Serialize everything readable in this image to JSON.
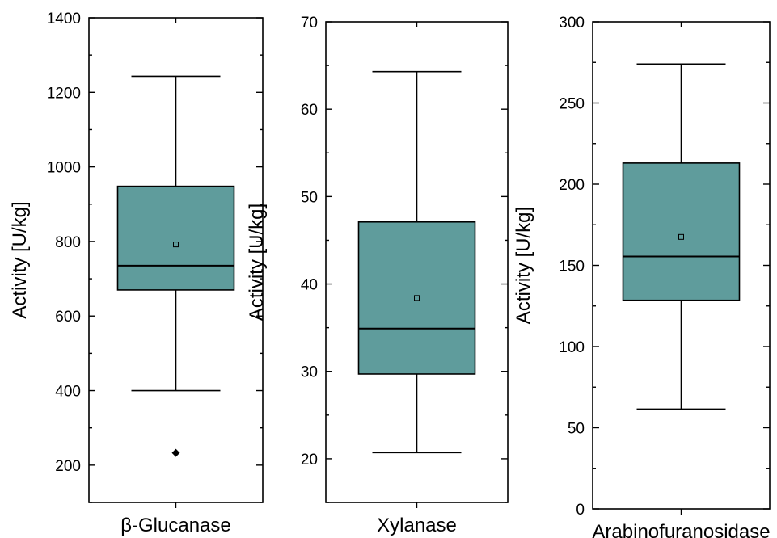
{
  "chart_data": [
    {
      "type": "box",
      "category": "β-Glucanase",
      "ylabel": "Activity [U/kg]",
      "ylim": [
        100,
        1400
      ],
      "yticks": [
        200,
        400,
        600,
        800,
        1000,
        1200,
        1400
      ],
      "box": {
        "whisker_low": 400,
        "q1": 670,
        "median": 735,
        "q3": 948,
        "whisker_high": 1243,
        "mean": 792,
        "outliers": [
          233
        ]
      }
    },
    {
      "type": "box",
      "category": "Xylanase",
      "ylabel": "Activity [U/kg]",
      "ylim": [
        15,
        70
      ],
      "yticks": [
        20,
        30,
        40,
        50,
        60,
        70
      ],
      "box": {
        "whisker_low": 20.7,
        "q1": 29.7,
        "median": 34.9,
        "q3": 47.1,
        "whisker_high": 64.3,
        "mean": 38.4,
        "outliers": []
      }
    },
    {
      "type": "box",
      "category": "Arabinofuranosidase",
      "ylabel": "Activity [U/kg]",
      "ylim": [
        0,
        300
      ],
      "yticks": [
        0,
        50,
        100,
        150,
        200,
        250,
        300
      ],
      "box": {
        "whisker_low": 61.5,
        "q1": 128.5,
        "median": 155.5,
        "q3": 213,
        "whisker_high": 274,
        "mean": 167.5,
        "outliers": []
      }
    }
  ],
  "colors": {
    "box_fill": "#5f9c9c",
    "stroke": "#000000"
  }
}
